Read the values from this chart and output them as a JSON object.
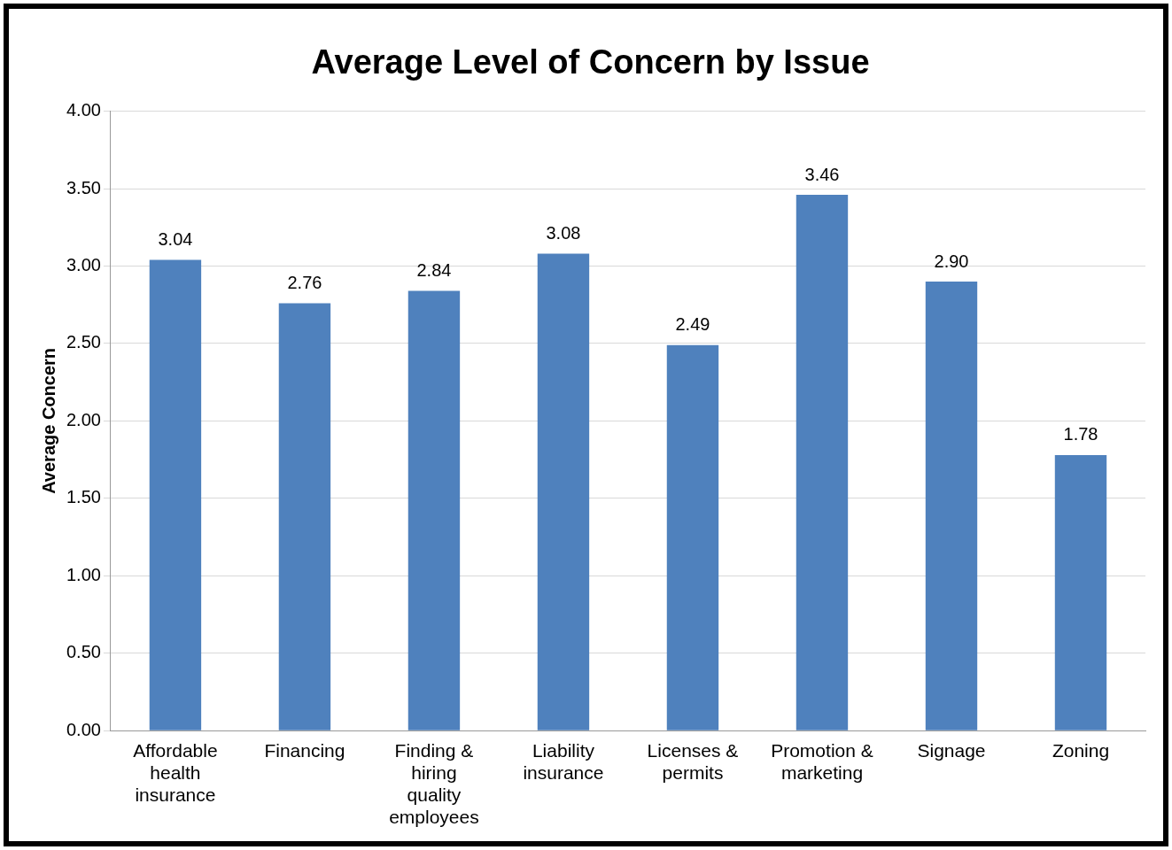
{
  "chart_data": {
    "type": "bar",
    "title": "Average Level of Concern by Issue",
    "ylabel": "Average Concern",
    "categories": [
      "Affordable health insurance",
      "Financing",
      "Finding & hiring quality employees",
      "Liability insurance",
      "Licenses & permits",
      "Promotion & marketing",
      "Signage",
      "Zoning"
    ],
    "values": [
      3.04,
      2.76,
      2.84,
      3.08,
      2.49,
      3.46,
      2.9,
      1.78
    ],
    "value_labels": [
      "3.04",
      "2.76",
      "2.84",
      "3.08",
      "2.49",
      "3.46",
      "2.90",
      "1.78"
    ],
    "color": "#4f81bd",
    "ylim": [
      0,
      4
    ],
    "yticks": [
      {
        "value": 0,
        "label": "0.00"
      },
      {
        "value": 0.5,
        "label": "0.50"
      },
      {
        "value": 1,
        "label": "1.00"
      },
      {
        "value": 1.5,
        "label": "1.50"
      },
      {
        "value": 2,
        "label": "2.00"
      },
      {
        "value": 2.5,
        "label": "2.50"
      },
      {
        "value": 3,
        "label": "3.00"
      },
      {
        "value": 3.5,
        "label": "3.50"
      },
      {
        "value": 4,
        "label": "4.00"
      }
    ],
    "grid": "y",
    "legend": false
  }
}
